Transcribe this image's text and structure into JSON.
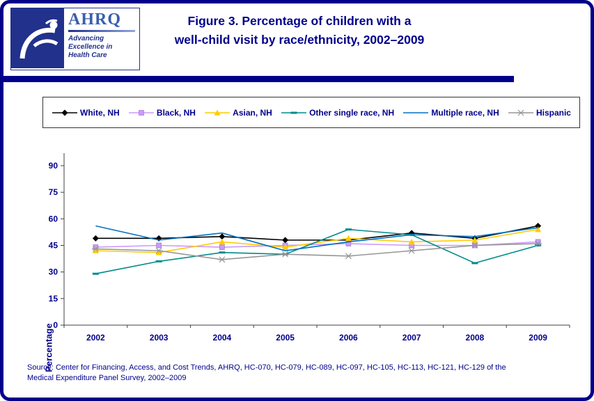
{
  "header": {
    "title_line1": "Figure 3. Percentage of children with a",
    "title_line2": "well-child visit by race/ethnicity, 2002–2009",
    "logo": {
      "org_acronym": "AHRQ",
      "tagline": [
        "Advancing",
        "Excellence in",
        "Health Care"
      ]
    }
  },
  "chart_data": {
    "type": "line",
    "title": "Figure 3. Percentage of children with a well-child visit by race/ethnicity, 2002–2009",
    "x": [
      "2002",
      "2003",
      "2004",
      "2005",
      "2006",
      "2007",
      "2008",
      "2009"
    ],
    "xlabel": "",
    "ylabel": "Percentage",
    "ylim": [
      0,
      90
    ],
    "yticks": [
      0,
      15,
      30,
      45,
      60,
      75,
      90
    ],
    "grid": false,
    "legend_position": "top",
    "series": [
      {
        "name": "White, NH",
        "color": "#000000",
        "marker": "diamond",
        "values": [
          49,
          49,
          50,
          48,
          48,
          52,
          49,
          56
        ]
      },
      {
        "name": "Black, NH",
        "color": "#CC99FF",
        "marker": "square",
        "values": [
          44,
          45,
          44,
          45,
          46,
          45,
          45,
          47
        ]
      },
      {
        "name": "Asian, NH",
        "color": "#FFCC00",
        "marker": "triangle",
        "values": [
          42,
          41,
          47,
          44,
          49,
          47,
          48,
          54
        ]
      },
      {
        "name": "Other single race, NH",
        "color": "#008B8B",
        "marker": "dash",
        "values": [
          29,
          36,
          41,
          40,
          54,
          51,
          35,
          45
        ]
      },
      {
        "name": "Multiple race, NH",
        "color": "#0070C0",
        "marker": "none",
        "values": [
          56,
          48,
          52,
          42,
          47,
          51,
          50,
          55
        ]
      },
      {
        "name": "Hispanic",
        "color": "#969696",
        "marker": "x",
        "values": [
          43,
          42,
          37,
          40,
          39,
          42,
          45,
          46
        ]
      }
    ]
  },
  "source": {
    "line1": "Source: Center for Financing, Access, and Cost Trends, AHRQ,  HC-070, HC-079, HC-089, HC-097, HC-105, HC-113, HC-121, HC-129 of the",
    "line2": "Medical Expenditure Panel Survey,  2002–2009"
  }
}
